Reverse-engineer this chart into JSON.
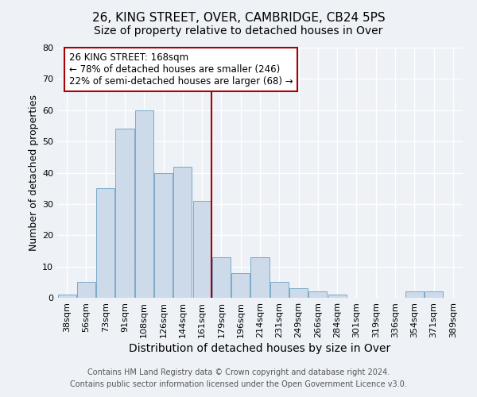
{
  "title": "26, KING STREET, OVER, CAMBRIDGE, CB24 5PS",
  "subtitle": "Size of property relative to detached houses in Over",
  "xlabel": "Distribution of detached houses by size in Over",
  "ylabel": "Number of detached properties",
  "bar_color": "#ccdaea",
  "bar_edgecolor": "#7aaac8",
  "categories": [
    "38sqm",
    "56sqm",
    "73sqm",
    "91sqm",
    "108sqm",
    "126sqm",
    "144sqm",
    "161sqm",
    "179sqm",
    "196sqm",
    "214sqm",
    "231sqm",
    "249sqm",
    "266sqm",
    "284sqm",
    "301sqm",
    "319sqm",
    "336sqm",
    "354sqm",
    "371sqm",
    "389sqm"
  ],
  "values": [
    1,
    5,
    35,
    54,
    60,
    40,
    42,
    31,
    13,
    8,
    13,
    5,
    3,
    2,
    1,
    0,
    0,
    0,
    2,
    2,
    0
  ],
  "ylim": [
    0,
    80
  ],
  "yticks": [
    0,
    10,
    20,
    30,
    40,
    50,
    60,
    70,
    80
  ],
  "vline_index": 7,
  "vline_color": "#aa0000",
  "annotation_title": "26 KING STREET: 168sqm",
  "annotation_line1": "← 78% of detached houses are smaller (246)",
  "annotation_line2": "22% of semi-detached houses are larger (68) →",
  "annotation_box_facecolor": "#ffffff",
  "annotation_box_edgecolor": "#aa0000",
  "footer1": "Contains HM Land Registry data © Crown copyright and database right 2024.",
  "footer2": "Contains public sector information licensed under the Open Government Licence v3.0.",
  "background_color": "#eef2f7",
  "grid_color": "#ffffff",
  "title_fontsize": 11,
  "subtitle_fontsize": 10,
  "xlabel_fontsize": 10,
  "ylabel_fontsize": 9,
  "tick_fontsize": 8,
  "annotation_fontsize": 8.5,
  "footer_fontsize": 7
}
